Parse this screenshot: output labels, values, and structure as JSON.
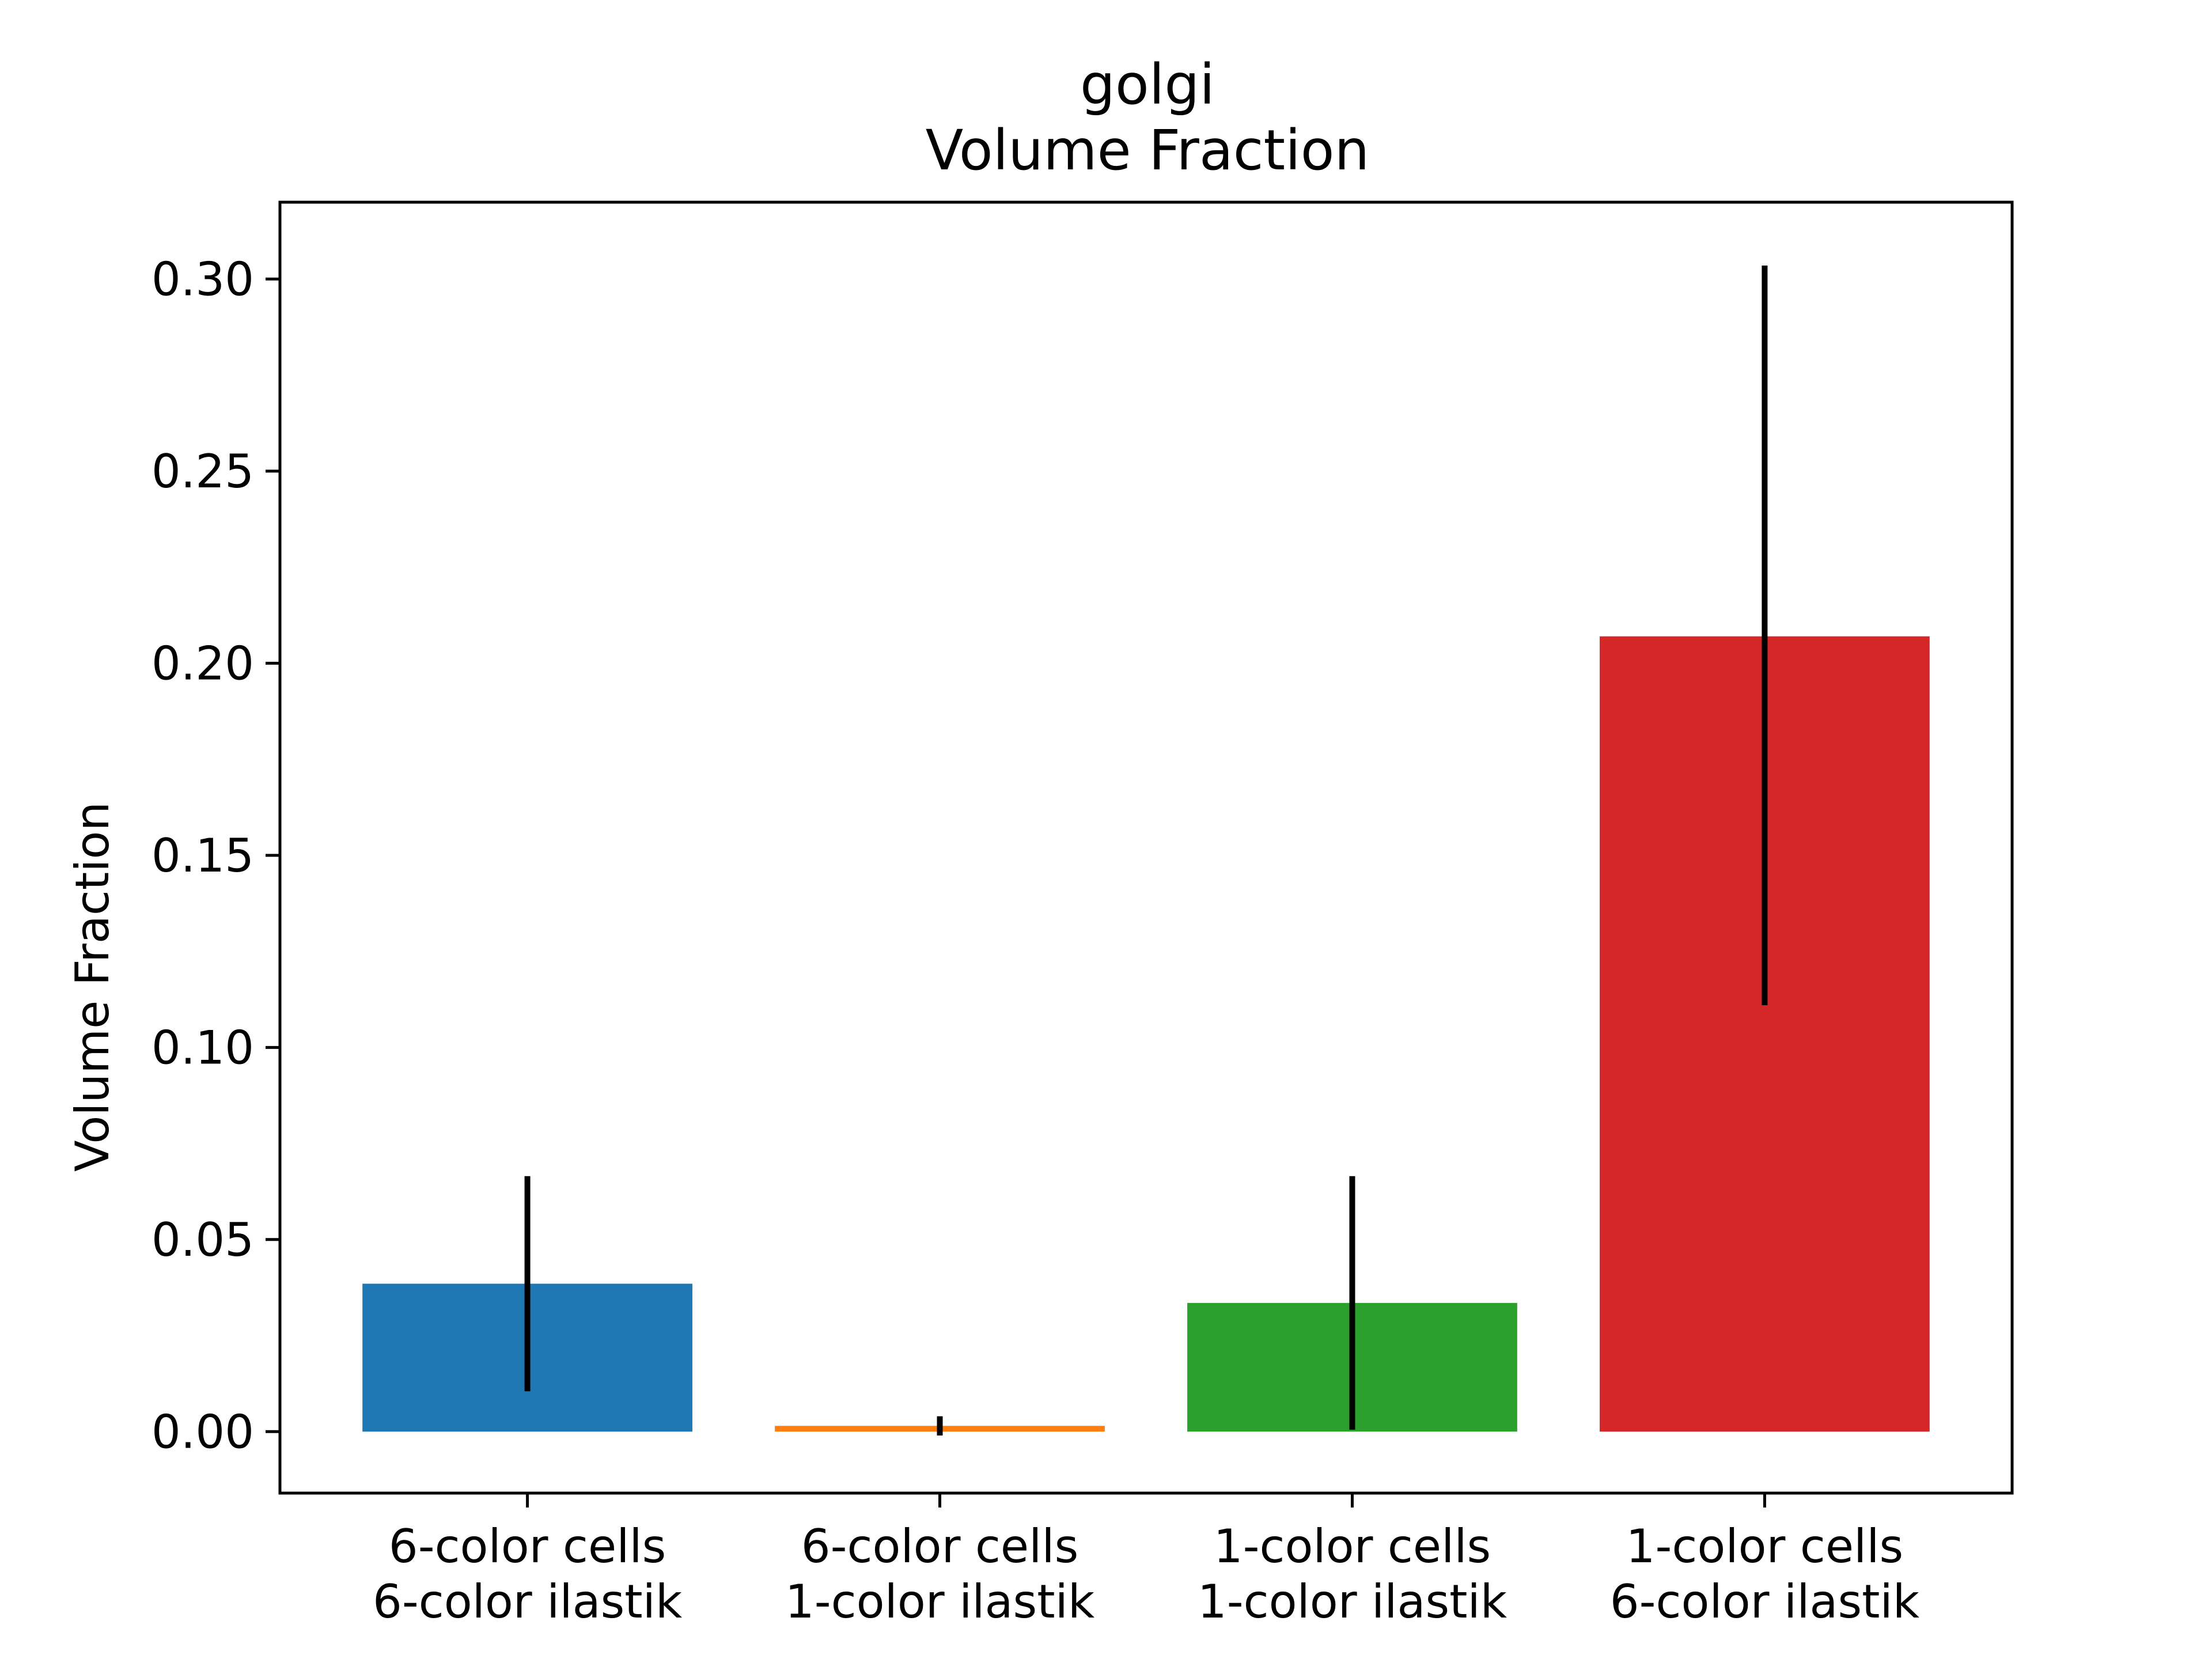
{
  "chart_data": {
    "type": "bar",
    "title": "golgi",
    "subtitle": "Volume Fraction",
    "xlabel": "",
    "ylabel": "Volume Fraction",
    "ylim": [
      -0.016,
      0.32
    ],
    "yticks": [
      "0.00",
      "0.05",
      "0.10",
      "0.15",
      "0.20",
      "0.25",
      "0.30"
    ],
    "grid": false,
    "categories": [
      [
        "6-color cells",
        "6-color ilastik"
      ],
      [
        "6-color cells",
        "1-color ilastik"
      ],
      [
        "1-color cells",
        "1-color ilastik"
      ],
      [
        "1-color cells",
        "6-color ilastik"
      ]
    ],
    "values": [
      0.0385,
      0.0015,
      0.0335,
      0.207
    ],
    "error_bars": [
      {
        "low": 0.0105,
        "high": 0.0665
      },
      {
        "low": -0.001,
        "high": 0.004
      },
      {
        "low": 0.0005,
        "high": 0.0665
      },
      {
        "low": 0.111,
        "high": 0.3035
      }
    ],
    "colors": [
      "#1f77b4",
      "#ff7f0e",
      "#2ca02c",
      "#d62728"
    ],
    "error_color": "#000000"
  }
}
